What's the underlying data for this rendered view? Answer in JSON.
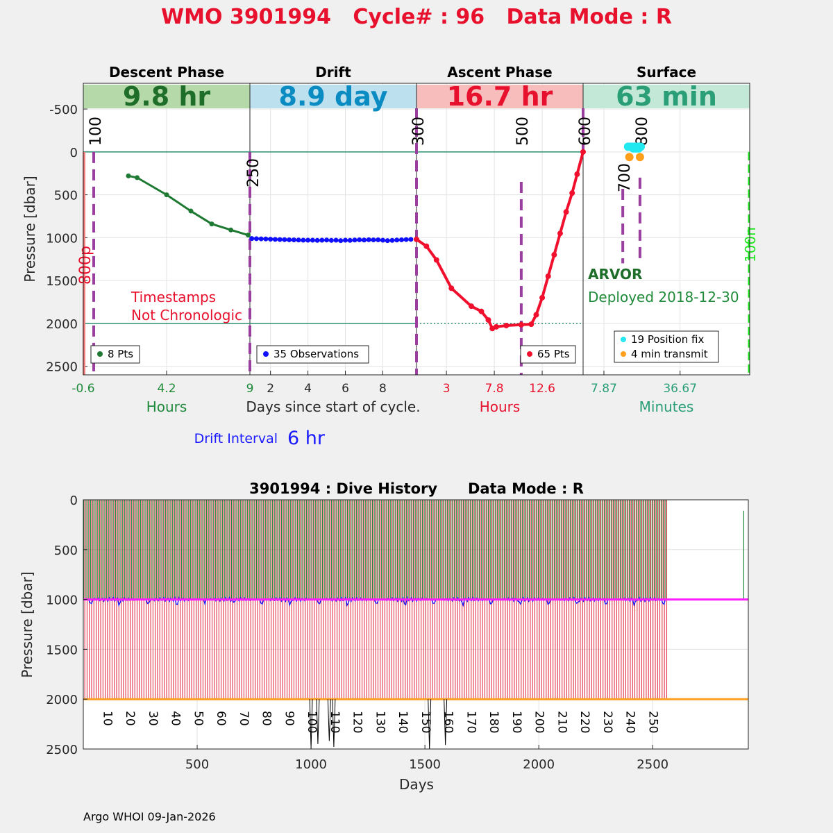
{
  "title": "WMO 3901994   Cycle# : 96   Data Mode : R",
  "chart_data": [
    {
      "type": "line",
      "name": "cycle-profile",
      "ylabel": "Pressure [dbar]",
      "ylim": [
        -800,
        2600
      ],
      "yticks": [
        "-500",
        "0",
        "500",
        "1000",
        "1500",
        "2000",
        "2500"
      ],
      "ytick_values": [
        -500,
        0,
        500,
        1000,
        1500,
        2000,
        2500
      ],
      "xlabel": "Days since start of cycle.",
      "phases": [
        {
          "name": "Descent Phase",
          "duration": "9.8 hr",
          "color": "#b5d9a8",
          "text_color": "#1e6e2a"
        },
        {
          "name": "Drift",
          "duration": "8.9 day",
          "color": "#bde0ee",
          "text_color": "#0a8cc2"
        },
        {
          "name": "Ascent Phase",
          "duration": "16.7 hr",
          "color": "#f7bcbc",
          "text_color": "#e8112d"
        },
        {
          "name": "Surface",
          "duration": "63 min",
          "color": "#c4e8d8",
          "text_color": "#2a9e76"
        }
      ],
      "descent": {
        "xlim": [
          -0.6,
          9
        ],
        "xticks": [
          "-0.6",
          "4.2",
          "9"
        ],
        "xtick_values": [
          -0.6,
          4.2,
          9
        ],
        "unit": "Hours",
        "legend": "8 Pts",
        "x": [
          2,
          2.5,
          4.2,
          5.6,
          6.8,
          7.9,
          8.9
        ],
        "y": [
          280,
          300,
          500,
          690,
          840,
          910,
          970
        ]
      },
      "drift": {
        "xlim": [
          0.9,
          9.8
        ],
        "xticks": [
          "2",
          "4",
          "6",
          "8"
        ],
        "xtick_values": [
          2,
          4,
          6,
          8
        ],
        "legend": "35 Observations",
        "x": [
          1.0,
          1.25,
          1.5,
          1.75,
          2.0,
          2.25,
          2.5,
          2.75,
          3.0,
          3.25,
          3.5,
          3.75,
          4.0,
          4.25,
          4.5,
          4.75,
          5.0,
          5.25,
          5.5,
          5.75,
          6.0,
          6.25,
          6.5,
          6.75,
          7.0,
          7.25,
          7.5,
          7.75,
          8.0,
          8.25,
          8.5,
          8.75,
          9.0,
          9.25,
          9.5
        ],
        "y": [
          1010,
          1012,
          1014,
          1015,
          1018,
          1020,
          1022,
          1023,
          1025,
          1026,
          1028,
          1030,
          1030,
          1030,
          1032,
          1030,
          1028,
          1032,
          1030,
          1035,
          1030,
          1032,
          1028,
          1025,
          1028,
          1024,
          1026,
          1025,
          1030,
          1035,
          1032,
          1028,
          1025,
          1022,
          1020
        ]
      },
      "ascent": {
        "xlim": [
          0,
          16.7
        ],
        "xticks": [
          "3",
          "7.8",
          "12.6"
        ],
        "xtick_values": [
          3,
          7.8,
          12.6
        ],
        "unit": "Hours",
        "legend": "65 Pts",
        "x": [
          0,
          1.0,
          2.0,
          3.5,
          5.5,
          6.5,
          7.2,
          7.6,
          8.0,
          9.0,
          10.5,
          11.5,
          12.0,
          12.6,
          13.2,
          13.8,
          14.4,
          15.0,
          15.6,
          16.1,
          16.7
        ],
        "y": [
          1020,
          1100,
          1260,
          1590,
          1800,
          1860,
          1960,
          2060,
          2040,
          2025,
          2015,
          2010,
          1900,
          1700,
          1450,
          1200,
          950,
          700,
          480,
          260,
          0
        ]
      },
      "surface": {
        "xlim": [
          0,
          63
        ],
        "xticks": [
          "7.87",
          "36.67"
        ],
        "xtick_values": [
          7.87,
          36.67
        ],
        "unit": "Minutes",
        "legend": [
          "19 Position fix",
          "4 min transmit"
        ],
        "platform": "ARVOR",
        "deployed": "Deployed 2018-12-30",
        "position_fix_x": [
          17,
          17.8,
          18.6,
          19.4,
          20.2,
          21,
          21.8,
          19,
          20,
          21
        ],
        "position_fix_y": [
          -60,
          -60,
          -60,
          -60,
          -60,
          -60,
          -60,
          -40,
          -40,
          -40
        ],
        "transmit_x": [
          17.5,
          21.5
        ],
        "transmit_y": [
          60,
          60
        ]
      },
      "annotations": {
        "timestamps": [
          "Timestamps",
          "Not Chronologic"
        ],
        "p800": "800p",
        "p100n": "100n",
        "markers": [
          "100",
          "250",
          "300",
          "500",
          "600",
          "700",
          "800"
        ]
      },
      "drift_interval_label": "Drift Interval",
      "drift_interval_value": "6 hr"
    },
    {
      "type": "bar",
      "name": "dive-history",
      "title": "3901994 : Dive History      Data Mode : R",
      "xlabel": "Days",
      "ylabel": "Pressure [dbar]",
      "xlim": [
        0,
        2920
      ],
      "ylim": [
        0,
        2500
      ],
      "xticks": [
        "500",
        "1000",
        "1500",
        "2000",
        "2500"
      ],
      "xtick_values": [
        500,
        1000,
        1500,
        2000,
        2500
      ],
      "yticks": [
        "0",
        "500",
        "1000",
        "1500",
        "2000",
        "2500"
      ],
      "ytick_values": [
        0,
        500,
        1000,
        1500,
        2000,
        2500
      ],
      "cycle_labels": [
        "10",
        "20",
        "30",
        "40",
        "50",
        "60",
        "70",
        "80",
        "90",
        "100",
        "110",
        "120",
        "130",
        "140",
        "150",
        "160",
        "170",
        "180",
        "190",
        "200",
        "210",
        "220",
        "230",
        "240",
        "250"
      ],
      "num_cycles": 257,
      "cycle_interval_days": 10,
      "park_pressure": 1000,
      "profile_pressure": 2000,
      "last_day": 2565
    }
  ],
  "footer": "Argo WHOI 09-Jan-2026"
}
